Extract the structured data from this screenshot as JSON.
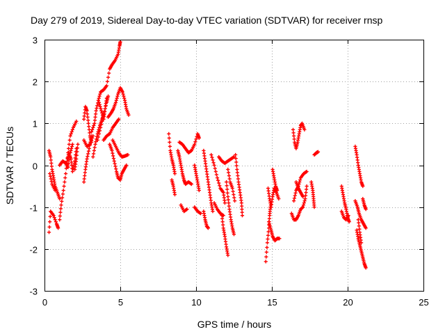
{
  "chart_data": {
    "type": "scatter",
    "title": "Day 279 of 2019, Sidereal Day-to-day VTEC variation (SDTVAR) for receiver rnsp",
    "xlabel": "GPS time / hours",
    "ylabel": "SDTVAR / TECUs",
    "xlim": [
      0,
      25
    ],
    "ylim": [
      -3,
      3
    ],
    "xticks": [
      0,
      5,
      10,
      15,
      20,
      25
    ],
    "yticks": [
      -3,
      -2,
      -1,
      0,
      1,
      2,
      3
    ],
    "grid": true,
    "marker": "+",
    "color": "#ff0000",
    "tracks": [
      [
        [
          0.3,
          -1.6
        ],
        [
          0.4,
          -1.1
        ],
        [
          0.6,
          -1.2
        ],
        [
          0.8,
          -1.4
        ],
        [
          0.9,
          -1.5
        ]
      ],
      [
        [
          0.3,
          0.35
        ],
        [
          0.4,
          0.2
        ],
        [
          0.5,
          -0.1
        ],
        [
          0.6,
          -0.3
        ],
        [
          0.7,
          -0.5
        ],
        [
          0.85,
          -0.65
        ],
        [
          1.0,
          -0.8
        ]
      ],
      [
        [
          0.35,
          -0.2
        ],
        [
          0.5,
          -0.45
        ],
        [
          0.7,
          -0.6
        ]
      ],
      [
        [
          1.0,
          -1.3
        ],
        [
          1.1,
          -0.95
        ],
        [
          1.25,
          -0.6
        ],
        [
          1.4,
          -0.2
        ],
        [
          1.55,
          0.3
        ],
        [
          1.7,
          0.7
        ],
        [
          1.9,
          0.9
        ],
        [
          2.1,
          1.05
        ]
      ],
      [
        [
          1.0,
          0.0
        ],
        [
          1.2,
          0.1
        ],
        [
          1.4,
          0.05
        ],
        [
          1.55,
          -0.05
        ],
        [
          1.7,
          0.3
        ],
        [
          1.85,
          0.5
        ]
      ],
      [
        [
          1.5,
          0.1
        ],
        [
          1.6,
          0.3
        ],
        [
          1.75,
          0.15
        ],
        [
          1.85,
          -0.15
        ],
        [
          2.0,
          0.1
        ],
        [
          2.1,
          0.4
        ]
      ],
      [
        [
          2.0,
          -0.1
        ],
        [
          2.1,
          0.15
        ],
        [
          2.2,
          0.5
        ]
      ],
      [
        [
          2.6,
          -0.4
        ],
        [
          2.7,
          -0.1
        ],
        [
          2.8,
          0.15
        ],
        [
          2.95,
          0.4
        ],
        [
          3.1,
          0.7
        ]
      ],
      [
        [
          2.6,
          1.1
        ],
        [
          2.7,
          1.4
        ],
        [
          2.8,
          1.3
        ],
        [
          2.9,
          1.0
        ],
        [
          3.0,
          0.7
        ],
        [
          3.1,
          0.55
        ]
      ],
      [
        [
          2.6,
          0.6
        ],
        [
          2.8,
          0.45
        ],
        [
          3.0,
          0.5
        ],
        [
          3.2,
          0.7
        ]
      ],
      [
        [
          3.1,
          0.8
        ],
        [
          3.3,
          1.0
        ],
        [
          3.4,
          1.3
        ],
        [
          3.55,
          1.55
        ],
        [
          3.7,
          1.75
        ],
        [
          3.9,
          1.8
        ],
        [
          4.1,
          1.9
        ],
        [
          4.3,
          2.3
        ],
        [
          4.45,
          2.4
        ],
        [
          4.65,
          2.5
        ],
        [
          4.85,
          2.65
        ],
        [
          4.95,
          2.85
        ],
        [
          5.0,
          2.95
        ]
      ],
      [
        [
          3.2,
          0.2
        ],
        [
          3.35,
          0.5
        ],
        [
          3.5,
          0.75
        ],
        [
          3.65,
          0.95
        ],
        [
          3.8,
          1.1
        ],
        [
          3.9,
          1.2
        ]
      ],
      [
        [
          3.5,
          0.6
        ],
        [
          3.7,
          0.9
        ],
        [
          3.9,
          1.2
        ],
        [
          4.1,
          1.5
        ],
        [
          4.2,
          1.65
        ]
      ],
      [
        [
          3.6,
          1.5
        ],
        [
          3.75,
          1.3
        ],
        [
          3.9,
          1.1
        ],
        [
          4.0,
          1.35
        ],
        [
          4.1,
          1.6
        ]
      ],
      [
        [
          3.9,
          0.6
        ],
        [
          4.1,
          0.7
        ],
        [
          4.3,
          0.75
        ],
        [
          4.5,
          0.9
        ],
        [
          4.7,
          1.0
        ],
        [
          4.9,
          1.1
        ]
      ],
      [
        [
          4.2,
          1.15
        ],
        [
          4.4,
          1.25
        ],
        [
          4.55,
          1.35
        ],
        [
          4.7,
          1.5
        ],
        [
          4.85,
          1.7
        ],
        [
          5.0,
          1.85
        ],
        [
          5.15,
          1.75
        ],
        [
          5.3,
          1.55
        ],
        [
          5.4,
          1.35
        ],
        [
          5.55,
          1.2
        ]
      ],
      [
        [
          4.3,
          0.5
        ],
        [
          4.45,
          0.35
        ],
        [
          4.6,
          0.1
        ],
        [
          4.75,
          -0.15
        ],
        [
          4.85,
          -0.3
        ],
        [
          5.0,
          -0.35
        ],
        [
          5.1,
          -0.2
        ],
        [
          5.25,
          -0.1
        ],
        [
          5.4,
          0.0
        ]
      ],
      [
        [
          4.5,
          0.6
        ],
        [
          4.7,
          0.45
        ],
        [
          4.9,
          0.3
        ],
        [
          5.1,
          0.2
        ],
        [
          5.3,
          0.22
        ],
        [
          5.5,
          0.25
        ]
      ],
      [
        [
          8.2,
          0.75
        ],
        [
          8.3,
          0.35
        ],
        [
          8.4,
          0.15
        ],
        [
          8.5,
          0.0
        ],
        [
          8.6,
          -0.2
        ]
      ],
      [
        [
          8.4,
          -0.35
        ],
        [
          8.5,
          -0.5
        ],
        [
          8.6,
          -0.7
        ]
      ],
      [
        [
          8.8,
          0.35
        ],
        [
          8.9,
          0.2
        ],
        [
          9.0,
          0.0
        ],
        [
          9.1,
          -0.2
        ],
        [
          9.2,
          -0.35
        ],
        [
          9.3,
          -0.45
        ],
        [
          9.5,
          -0.4
        ],
        [
          9.7,
          -0.45
        ]
      ],
      [
        [
          8.9,
          0.55
        ],
        [
          9.1,
          0.5
        ],
        [
          9.3,
          0.4
        ],
        [
          9.5,
          0.3
        ],
        [
          9.7,
          0.35
        ],
        [
          9.9,
          0.5
        ],
        [
          10.1,
          0.75
        ],
        [
          10.2,
          0.65
        ]
      ],
      [
        [
          9.0,
          -0.95
        ],
        [
          9.2,
          -1.1
        ],
        [
          9.4,
          -1.05
        ]
      ],
      [
        [
          9.9,
          -1.0
        ],
        [
          10.1,
          -1.1
        ],
        [
          10.3,
          -1.15
        ]
      ],
      [
        [
          9.9,
          0.0
        ],
        [
          10.0,
          -0.2
        ],
        [
          10.1,
          -0.4
        ],
        [
          10.2,
          -0.6
        ]
      ],
      [
        [
          10.5,
          0.35
        ],
        [
          10.6,
          0.1
        ],
        [
          10.7,
          -0.15
        ],
        [
          10.8,
          -0.4
        ],
        [
          10.9,
          -0.65
        ],
        [
          11.0,
          -0.9
        ],
        [
          11.1,
          -1.1
        ]
      ],
      [
        [
          10.5,
          -1.1
        ],
        [
          10.6,
          -1.3
        ],
        [
          10.7,
          -1.45
        ],
        [
          10.8,
          -1.5
        ]
      ],
      [
        [
          11.0,
          0.25
        ],
        [
          11.2,
          0.0
        ],
        [
          11.4,
          -0.3
        ],
        [
          11.6,
          -0.55
        ],
        [
          11.8,
          -0.65
        ],
        [
          11.9,
          -0.9
        ]
      ],
      [
        [
          11.2,
          -0.9
        ],
        [
          11.4,
          -1.05
        ],
        [
          11.6,
          -1.15
        ],
        [
          11.8,
          -1.2
        ]
      ],
      [
        [
          11.5,
          0.2
        ],
        [
          11.7,
          0.1
        ],
        [
          11.9,
          0.05
        ],
        [
          12.1,
          0.1
        ],
        [
          12.3,
          0.15
        ],
        [
          12.5,
          0.2
        ]
      ],
      [
        [
          11.7,
          -1.2
        ],
        [
          11.8,
          -1.5
        ],
        [
          11.9,
          -1.7
        ],
        [
          12.0,
          -1.95
        ],
        [
          12.1,
          -2.15
        ]
      ],
      [
        [
          12.0,
          -0.4
        ],
        [
          12.1,
          -0.75
        ],
        [
          12.2,
          -1.05
        ],
        [
          12.3,
          -1.3
        ],
        [
          12.4,
          -1.5
        ],
        [
          12.5,
          -1.65
        ]
      ],
      [
        [
          12.1,
          -0.1
        ],
        [
          12.25,
          -0.4
        ],
        [
          12.4,
          -0.55
        ],
        [
          12.55,
          -0.85
        ]
      ],
      [
        [
          12.6,
          0.25
        ],
        [
          12.7,
          -0.1
        ],
        [
          12.8,
          -0.4
        ],
        [
          12.9,
          -0.65
        ],
        [
          13.0,
          -0.9
        ],
        [
          13.05,
          -1.2
        ]
      ],
      [
        [
          14.6,
          -2.3
        ],
        [
          14.7,
          -1.85
        ],
        [
          14.8,
          -1.5
        ],
        [
          14.85,
          -1.2
        ],
        [
          14.9,
          -1.0
        ]
      ],
      [
        [
          14.75,
          -0.55
        ],
        [
          14.85,
          -0.8
        ],
        [
          14.95,
          -1.0
        ],
        [
          15.05,
          -0.75
        ],
        [
          15.15,
          -0.55
        ],
        [
          15.3,
          -0.65
        ],
        [
          15.45,
          -0.8
        ]
      ],
      [
        [
          14.8,
          -1.35
        ],
        [
          14.95,
          -1.55
        ],
        [
          15.05,
          -1.7
        ],
        [
          15.2,
          -1.8
        ],
        [
          15.35,
          -1.75
        ],
        [
          15.5,
          -1.75
        ]
      ],
      [
        [
          15.05,
          -0.1
        ],
        [
          15.15,
          -0.3
        ],
        [
          15.25,
          -0.5
        ],
        [
          15.35,
          -0.6
        ]
      ],
      [
        [
          16.4,
          0.85
        ],
        [
          16.5,
          0.55
        ],
        [
          16.6,
          0.4
        ],
        [
          16.7,
          0.55
        ],
        [
          16.8,
          0.75
        ],
        [
          16.9,
          0.95
        ],
        [
          17.0,
          1.0
        ],
        [
          17.15,
          0.85
        ]
      ],
      [
        [
          16.3,
          -1.15
        ],
        [
          16.45,
          -1.3
        ],
        [
          16.6,
          -1.3
        ],
        [
          16.75,
          -1.2
        ],
        [
          16.9,
          -1.05
        ],
        [
          17.05,
          -1.0
        ],
        [
          17.2,
          -0.8
        ],
        [
          17.3,
          -0.5
        ]
      ],
      [
        [
          16.45,
          -0.85
        ],
        [
          16.6,
          -0.6
        ],
        [
          16.75,
          -0.5
        ],
        [
          16.9,
          -0.3
        ],
        [
          17.1,
          -0.2
        ],
        [
          17.3,
          -0.15
        ]
      ],
      [
        [
          16.6,
          -0.4
        ],
        [
          16.75,
          -0.55
        ],
        [
          16.9,
          -0.65
        ],
        [
          17.05,
          -0.75
        ]
      ],
      [
        [
          17.6,
          -0.4
        ],
        [
          17.7,
          -0.6
        ],
        [
          17.75,
          -0.8
        ],
        [
          17.8,
          -1.0
        ]
      ],
      [
        [
          17.8,
          0.25
        ],
        [
          17.95,
          0.3
        ],
        [
          18.05,
          0.32
        ]
      ],
      [
        [
          19.6,
          -0.5
        ],
        [
          19.7,
          -0.7
        ],
        [
          19.8,
          -0.9
        ],
        [
          19.9,
          -1.05
        ],
        [
          20.0,
          -1.25
        ],
        [
          20.1,
          -1.35
        ]
      ],
      [
        [
          19.6,
          -1.1
        ],
        [
          19.75,
          -1.25
        ],
        [
          19.9,
          -1.3
        ],
        [
          20.05,
          -1.2
        ]
      ],
      [
        [
          20.5,
          0.45
        ],
        [
          20.6,
          0.25
        ],
        [
          20.7,
          0.0
        ],
        [
          20.8,
          -0.2
        ],
        [
          20.9,
          -0.4
        ],
        [
          21.0,
          -0.5
        ]
      ],
      [
        [
          20.5,
          -0.85
        ],
        [
          20.65,
          -1.0
        ],
        [
          20.75,
          -1.15
        ],
        [
          20.9,
          -1.3
        ],
        [
          21.05,
          -1.4
        ],
        [
          21.2,
          -1.5
        ]
      ],
      [
        [
          20.6,
          -1.55
        ],
        [
          20.7,
          -1.75
        ],
        [
          20.8,
          -1.9
        ],
        [
          20.9,
          -2.05
        ],
        [
          21.0,
          -2.2
        ],
        [
          21.1,
          -2.35
        ],
        [
          21.2,
          -2.45
        ]
      ],
      [
        [
          20.7,
          -1.3
        ],
        [
          20.8,
          -1.6
        ],
        [
          20.9,
          -1.85
        ]
      ],
      [
        [
          21.0,
          -0.8
        ],
        [
          21.1,
          -0.95
        ],
        [
          21.2,
          -1.05
        ]
      ]
    ]
  }
}
